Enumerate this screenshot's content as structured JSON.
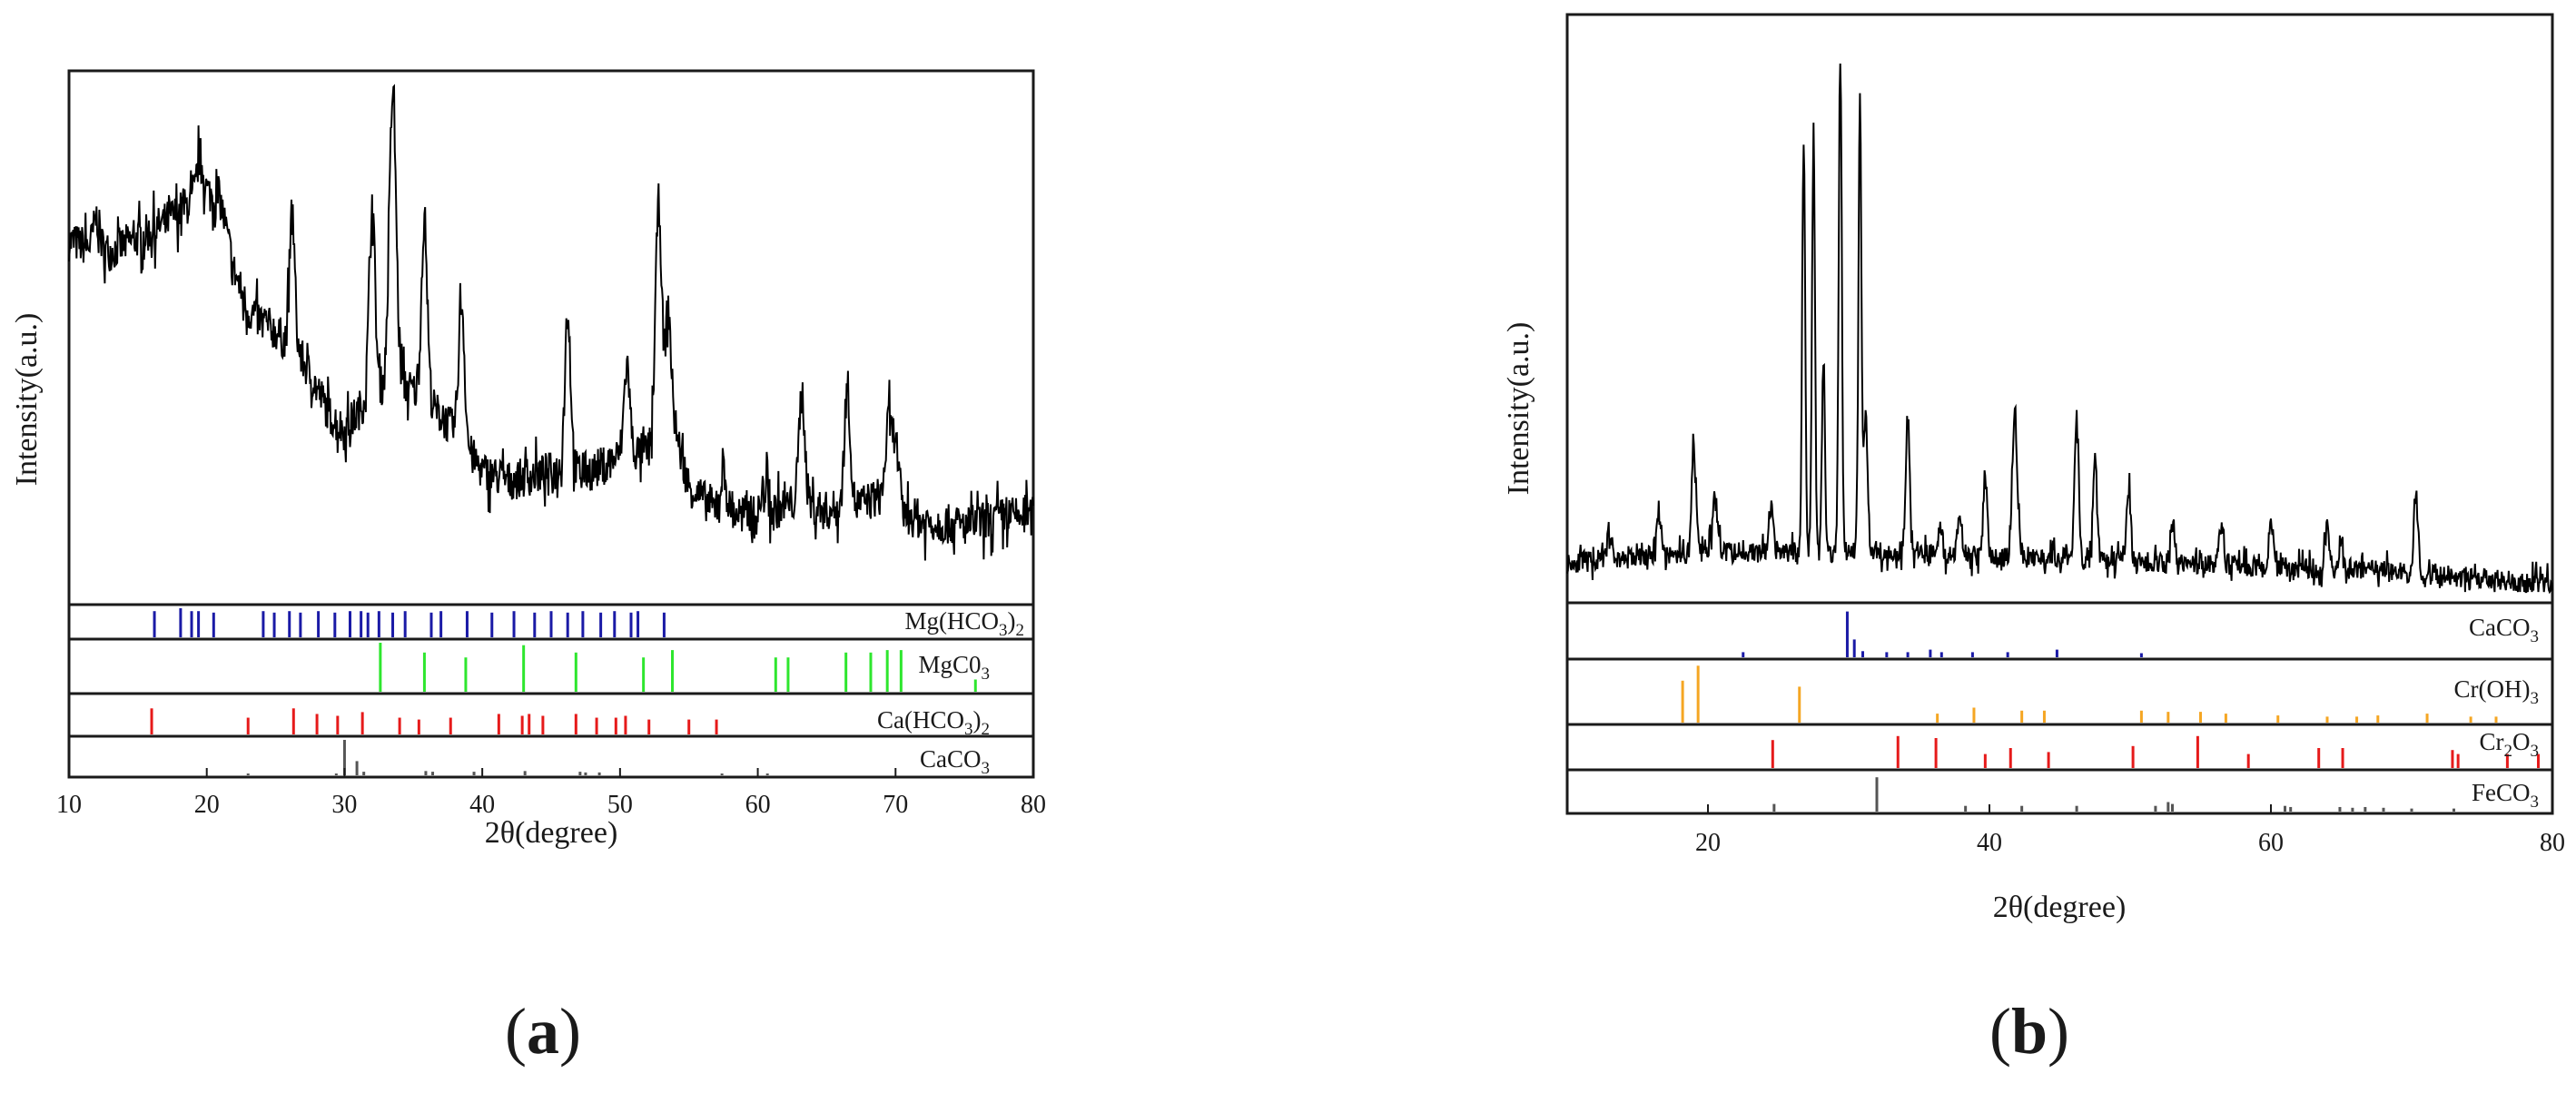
{
  "colors": {
    "spectrum": "#000000",
    "frame": "#1a1a1a",
    "blue": "#1a1aa6",
    "green": "#2ee62e",
    "red": "#e61a1a",
    "gray": "#555555",
    "orange": "#f5a623"
  },
  "chart_data": [
    {
      "id": "a",
      "type": "line",
      "panel_label_pre": "(",
      "panel_label_letter": "a",
      "panel_label_post": ")",
      "xlabel": "2θ(degree)",
      "ylabel": "Intensity(a.u.)",
      "xlim": [
        10,
        80
      ],
      "xticks": [
        10,
        20,
        30,
        40,
        50,
        60,
        70,
        80
      ],
      "tick_labels": [
        "10",
        "20",
        "30",
        "40",
        "50",
        "60",
        "70",
        "80"
      ],
      "spectrum": {
        "ylim": [
          0,
          100
        ],
        "baseline": [
          [
            10,
            68
          ],
          [
            13,
            66
          ],
          [
            16,
            70
          ],
          [
            18,
            74
          ],
          [
            20,
            78
          ],
          [
            21,
            76
          ],
          [
            22,
            62
          ],
          [
            23,
            54
          ],
          [
            25,
            50
          ],
          [
            27,
            44
          ],
          [
            29,
            33
          ],
          [
            30,
            30
          ],
          [
            32,
            38
          ],
          [
            34,
            40
          ],
          [
            36,
            36
          ],
          [
            38,
            30
          ],
          [
            40,
            22
          ],
          [
            42,
            20
          ],
          [
            45,
            22
          ],
          [
            48,
            22
          ],
          [
            50,
            25
          ],
          [
            52,
            26
          ],
          [
            54,
            30
          ],
          [
            55,
            19
          ],
          [
            57,
            14
          ],
          [
            60,
            13
          ],
          [
            63,
            16
          ],
          [
            65,
            14
          ],
          [
            67,
            15
          ],
          [
            69,
            17
          ],
          [
            70,
            14
          ],
          [
            72,
            12
          ],
          [
            75,
            11
          ],
          [
            78,
            13
          ],
          [
            80,
            13
          ]
        ],
        "peaks": [
          [
            12.0,
            6,
            0.3
          ],
          [
            19.5,
            8,
            0.3
          ],
          [
            26.2,
            26,
            0.28
          ],
          [
            32.0,
            38,
            0.3
          ],
          [
            33.5,
            58,
            0.35
          ],
          [
            35.8,
            36,
            0.3
          ],
          [
            38.5,
            28,
            0.3
          ],
          [
            46.2,
            32,
            0.3
          ],
          [
            50.5,
            18,
            0.3
          ],
          [
            52.8,
            48,
            0.32
          ],
          [
            53.5,
            25,
            0.3
          ],
          [
            57.5,
            8,
            0.3
          ],
          [
            60.5,
            6,
            0.3
          ],
          [
            63.2,
            22,
            0.3
          ],
          [
            66.5,
            24,
            0.3
          ],
          [
            69.5,
            16,
            0.3
          ],
          [
            70.0,
            14,
            0.3
          ]
        ],
        "noise": 8
      },
      "references": [
        {
          "label_main": "Mg(HCO",
          "label_sub": "3",
          "label_post": ")",
          "label_sub2": "2",
          "color": "#1a1aa6",
          "lines": [
            [
              16.2,
              0.9
            ],
            [
              18.1,
              1.0
            ],
            [
              18.9,
              0.9
            ],
            [
              19.4,
              0.9
            ],
            [
              20.5,
              0.85
            ],
            [
              24.1,
              0.9
            ],
            [
              24.9,
              0.85
            ],
            [
              26.0,
              0.9
            ],
            [
              26.8,
              0.85
            ],
            [
              28.1,
              0.9
            ],
            [
              29.3,
              0.85
            ],
            [
              30.4,
              0.9
            ],
            [
              31.2,
              0.9
            ],
            [
              31.7,
              0.85
            ],
            [
              32.5,
              0.9
            ],
            [
              33.5,
              0.85
            ],
            [
              34.4,
              0.9
            ],
            [
              36.3,
              0.85
            ],
            [
              37.0,
              0.9
            ],
            [
              38.9,
              0.9
            ],
            [
              40.7,
              0.85
            ],
            [
              42.3,
              0.9
            ],
            [
              43.8,
              0.85
            ],
            [
              45.0,
              0.9
            ],
            [
              46.2,
              0.85
            ],
            [
              47.3,
              0.9
            ],
            [
              48.6,
              0.85
            ],
            [
              49.6,
              0.9
            ],
            [
              50.8,
              0.85
            ],
            [
              51.3,
              0.9
            ],
            [
              53.2,
              0.85
            ]
          ]
        },
        {
          "label_main": "MgC0",
          "label_sub": "3",
          "label_post": "",
          "label_sub2": "",
          "color": "#2ee62e",
          "lines": [
            [
              32.6,
              1.0
            ],
            [
              35.8,
              0.8
            ],
            [
              38.8,
              0.7
            ],
            [
              43.0,
              0.95
            ],
            [
              46.8,
              0.8
            ],
            [
              51.7,
              0.7
            ],
            [
              53.8,
              0.85
            ],
            [
              61.3,
              0.7
            ],
            [
              62.2,
              0.7
            ],
            [
              66.4,
              0.8
            ],
            [
              68.2,
              0.8
            ],
            [
              69.4,
              0.85
            ],
            [
              70.4,
              0.85
            ],
            [
              75.8,
              0.25
            ]
          ]
        },
        {
          "label_main": "Ca(HCO",
          "label_sub": "3",
          "label_post": ")",
          "label_sub2": "2",
          "color": "#e61a1a",
          "lines": [
            [
              16.0,
              0.7
            ],
            [
              23.0,
              0.45
            ],
            [
              26.3,
              0.7
            ],
            [
              28.0,
              0.55
            ],
            [
              29.5,
              0.5
            ],
            [
              31.3,
              0.6
            ],
            [
              34.0,
              0.45
            ],
            [
              35.4,
              0.4
            ],
            [
              37.7,
              0.45
            ],
            [
              41.2,
              0.55
            ],
            [
              42.9,
              0.5
            ],
            [
              43.4,
              0.55
            ],
            [
              44.4,
              0.5
            ],
            [
              46.8,
              0.55
            ],
            [
              48.3,
              0.45
            ],
            [
              49.7,
              0.45
            ],
            [
              50.4,
              0.5
            ],
            [
              52.1,
              0.4
            ],
            [
              55.0,
              0.4
            ],
            [
              57.0,
              0.4
            ]
          ]
        },
        {
          "label_main": "CaCO",
          "label_sub": "3",
          "label_post": "",
          "label_sub2": "",
          "color": "#555555",
          "lines": [
            [
              23.0,
              0.05
            ],
            [
              29.4,
              0.05
            ],
            [
              30.0,
              1.0
            ],
            [
              30.9,
              0.4
            ],
            [
              31.4,
              0.1
            ],
            [
              35.9,
              0.12
            ],
            [
              36.4,
              0.1
            ],
            [
              39.4,
              0.1
            ],
            [
              43.1,
              0.12
            ],
            [
              47.1,
              0.1
            ],
            [
              47.5,
              0.08
            ],
            [
              48.5,
              0.08
            ],
            [
              57.4,
              0.05
            ],
            [
              60.7,
              0.05
            ]
          ]
        }
      ]
    },
    {
      "id": "b",
      "type": "line",
      "panel_label_pre": "(",
      "panel_label_letter": "b",
      "panel_label_post": ")",
      "xlabel": "2θ(degree)",
      "ylabel": "Intensity(a.u.)",
      "xlim": [
        10,
        80
      ],
      "xticks": [
        20,
        40,
        60,
        80
      ],
      "tick_labels": [
        "20",
        "40",
        "60",
        "80"
      ],
      "spectrum": {
        "ylim": [
          0,
          100
        ],
        "baseline": [
          [
            10,
            6
          ],
          [
            15,
            7
          ],
          [
            20,
            8
          ],
          [
            25,
            8
          ],
          [
            30,
            8
          ],
          [
            35,
            8
          ],
          [
            40,
            7
          ],
          [
            45,
            7
          ],
          [
            50,
            6
          ],
          [
            55,
            6
          ],
          [
            60,
            5
          ],
          [
            65,
            5
          ],
          [
            70,
            4
          ],
          [
            75,
            3
          ],
          [
            80,
            2
          ]
        ],
        "peaks": [
          [
            13.0,
            6,
            0.2
          ],
          [
            16.5,
            8,
            0.25
          ],
          [
            19.0,
            22,
            0.2
          ],
          [
            20.5,
            10,
            0.25
          ],
          [
            24.5,
            8,
            0.2
          ],
          [
            26.8,
            78,
            0.15
          ],
          [
            27.5,
            80,
            0.15
          ],
          [
            28.2,
            36,
            0.15
          ],
          [
            29.4,
            97,
            0.15
          ],
          [
            30.8,
            84,
            0.15
          ],
          [
            31.2,
            25,
            0.2
          ],
          [
            34.2,
            26,
            0.2
          ],
          [
            36.5,
            6,
            0.2
          ],
          [
            37.9,
            8,
            0.2
          ],
          [
            39.7,
            15,
            0.2
          ],
          [
            41.8,
            28,
            0.25
          ],
          [
            46.2,
            27,
            0.2
          ],
          [
            47.5,
            20,
            0.2
          ],
          [
            49.9,
            14,
            0.2
          ],
          [
            53.0,
            8,
            0.2
          ],
          [
            56.5,
            8,
            0.2
          ],
          [
            60.0,
            10,
            0.2
          ],
          [
            64.0,
            8,
            0.2
          ],
          [
            65.0,
            6,
            0.2
          ],
          [
            70.3,
            15,
            0.2
          ]
        ],
        "noise": 4
      },
      "references": [
        {
          "label_main": "CaCO",
          "label_sub": "3",
          "label_post": "",
          "label_sub2": "",
          "color": "#1a1aa6",
          "lines": [
            [
              22.5,
              0.1
            ],
            [
              29.9,
              0.9
            ],
            [
              30.4,
              0.35
            ],
            [
              31.0,
              0.12
            ],
            [
              32.7,
              0.1
            ],
            [
              34.2,
              0.1
            ],
            [
              35.8,
              0.15
            ],
            [
              36.6,
              0.1
            ],
            [
              38.8,
              0.1
            ],
            [
              41.3,
              0.1
            ],
            [
              44.8,
              0.15
            ],
            [
              50.8,
              0.08
            ]
          ]
        },
        {
          "label_main": "Cr(OH)",
          "label_sub": "3",
          "label_post": "",
          "label_sub2": "",
          "color": "#f5a623",
          "lines": [
            [
              18.2,
              0.7
            ],
            [
              19.3,
              0.95
            ],
            [
              26.5,
              0.6
            ],
            [
              36.3,
              0.15
            ],
            [
              38.9,
              0.25
            ],
            [
              42.3,
              0.2
            ],
            [
              43.9,
              0.2
            ],
            [
              50.8,
              0.2
            ],
            [
              52.7,
              0.18
            ],
            [
              55.0,
              0.18
            ],
            [
              56.8,
              0.15
            ],
            [
              60.5,
              0.12
            ],
            [
              64.0,
              0.1
            ],
            [
              66.1,
              0.1
            ],
            [
              67.6,
              0.12
            ],
            [
              71.1,
              0.15
            ],
            [
              74.2,
              0.1
            ],
            [
              76.0,
              0.1
            ]
          ]
        },
        {
          "label_main": "Cr",
          "label_sub": "2",
          "label_post": "O",
          "label_sub2": "3",
          "color": "#e61a1a",
          "lines": [
            [
              24.6,
              0.7
            ],
            [
              33.5,
              0.8
            ],
            [
              36.2,
              0.75
            ],
            [
              39.7,
              0.35
            ],
            [
              41.5,
              0.5
            ],
            [
              44.2,
              0.4
            ],
            [
              50.2,
              0.55
            ],
            [
              54.8,
              0.8
            ],
            [
              58.4,
              0.35
            ],
            [
              63.4,
              0.5
            ],
            [
              65.1,
              0.5
            ],
            [
              72.9,
              0.45
            ],
            [
              73.3,
              0.35
            ],
            [
              76.8,
              0.35
            ],
            [
              79.0,
              0.35
            ]
          ]
        },
        {
          "label_main": "FeCO",
          "label_sub": "3",
          "label_post": "",
          "label_sub2": "",
          "color": "#555555",
          "lines": [
            [
              24.7,
              0.2
            ],
            [
              32.0,
              0.9
            ],
            [
              38.3,
              0.15
            ],
            [
              42.3,
              0.15
            ],
            [
              46.2,
              0.15
            ],
            [
              51.8,
              0.15
            ],
            [
              52.7,
              0.25
            ],
            [
              53.0,
              0.2
            ],
            [
              61.0,
              0.15
            ],
            [
              61.4,
              0.12
            ],
            [
              64.9,
              0.12
            ],
            [
              65.8,
              0.1
            ],
            [
              66.7,
              0.12
            ],
            [
              68.0,
              0.1
            ],
            [
              70.0,
              0.08
            ],
            [
              73.0,
              0.08
            ]
          ]
        }
      ]
    }
  ]
}
